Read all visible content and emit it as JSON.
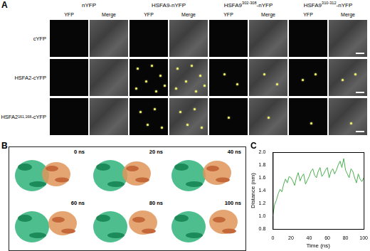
{
  "panel_labels": [
    "A",
    "B",
    "C"
  ],
  "panel_a": {
    "columns": [
      {
        "base": "nYFP",
        "sup": "",
        "suffix": ""
      },
      {
        "base": "HSFA9-nYFP",
        "sup": "",
        "suffix": ""
      },
      {
        "base": "HSFA9",
        "sup": "302-308",
        "suffix": "-nYFP"
      },
      {
        "base": "HSFA9",
        "sup": "310-312",
        "suffix": "-nYFP"
      }
    ],
    "subcolumns": [
      "YFP",
      "Merge"
    ],
    "rows": [
      {
        "base": "cYFP",
        "sup": "",
        "suffix": ""
      },
      {
        "base": "HSFA2-cYFP",
        "sup": "",
        "suffix": ""
      },
      {
        "base": "HSFA2",
        "sup": "161,168",
        "suffix": "-cYFP"
      }
    ]
  },
  "panel_b": {
    "frames": [
      "0 ns",
      "20 ns",
      "40 ns",
      "60 ns",
      "80 ns",
      "100 ns"
    ]
  },
  "chart_data": {
    "type": "line",
    "x_label": "Time (ns)",
    "y_label": "Distance (nm)",
    "x": [
      0,
      2,
      4,
      6,
      8,
      10,
      12,
      14,
      16,
      18,
      20,
      22,
      24,
      26,
      28,
      30,
      32,
      34,
      36,
      38,
      40,
      42,
      44,
      46,
      48,
      50,
      52,
      54,
      56,
      58,
      60,
      62,
      64,
      66,
      68,
      70,
      72,
      74,
      76,
      78,
      80,
      82,
      84,
      86,
      88,
      90,
      92,
      94,
      96,
      98,
      100
    ],
    "values": [
      1.0,
      1.18,
      1.25,
      1.35,
      1.42,
      1.38,
      1.5,
      1.58,
      1.52,
      1.62,
      1.6,
      1.55,
      1.48,
      1.6,
      1.68,
      1.55,
      1.62,
      1.66,
      1.5,
      1.56,
      1.62,
      1.7,
      1.74,
      1.64,
      1.6,
      1.7,
      1.76,
      1.62,
      1.66,
      1.72,
      1.76,
      1.6,
      1.7,
      1.74,
      1.66,
      1.72,
      1.8,
      1.86,
      1.76,
      1.9,
      1.72,
      1.66,
      1.6,
      1.74,
      1.7,
      1.6,
      1.52,
      1.66,
      1.58,
      1.54,
      1.6
    ],
    "color": "#4caf50",
    "xlim": [
      0,
      100
    ],
    "xticks": [
      0,
      20,
      40,
      60,
      80,
      100
    ],
    "ylim": [
      0.8,
      2.0
    ],
    "yticks": [
      0.8,
      {
        "value": 1,
        "label": "1.0"
      },
      1.2,
      1.4,
      1.6,
      1.8,
      {
        "value": 2,
        "label": "2.0"
      }
    ],
    "grid": false
  }
}
